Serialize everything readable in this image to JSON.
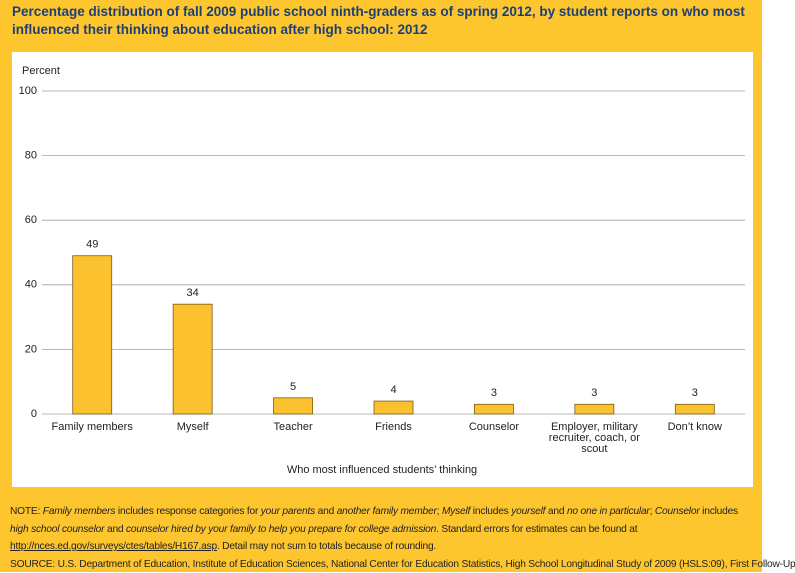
{
  "chart_data": {
    "type": "bar",
    "title": "Percentage distribution of fall 2009 public school ninth-graders as of spring 2012, by student reports on who most influenced their thinking about education after high school: 2012",
    "y_axis_label": "Percent",
    "x_axis_label": "Who most influenced students’ thinking",
    "categories": [
      "Family members",
      "Myself",
      "Teacher",
      "Friends",
      "Counselor",
      "Employer, military recruiter, coach, or scout",
      "Don’t know"
    ],
    "values": [
      49,
      34,
      5,
      4,
      3,
      3,
      3
    ],
    "color": "#fcc12f",
    "ylim": [
      0,
      100
    ],
    "yticks": [
      0,
      20,
      40,
      60,
      80,
      100
    ],
    "grid": true,
    "note": [
      {
        "text": "NOTE: ",
        "italic": false
      },
      {
        "text": "Family members",
        "italic": true
      },
      {
        "text": " includes response categories for ",
        "italic": false
      },
      {
        "text": "your parents",
        "italic": true
      },
      {
        "text": " and ",
        "italic": false
      },
      {
        "text": "another family member",
        "italic": true
      },
      {
        "text": "; ",
        "italic": false
      },
      {
        "text": "Myself",
        "italic": true
      },
      {
        "text": " includes ",
        "italic": false
      },
      {
        "text": "yourself",
        "italic": true
      },
      {
        "text": " and ",
        "italic": false
      },
      {
        "text": "no one in particular",
        "italic": true
      },
      {
        "text": "; ",
        "italic": false
      },
      {
        "text": "Counselor",
        "italic": true
      },
      {
        "text": " includes ",
        "italic": false
      },
      {
        "text": "high school counselor",
        "italic": true
      },
      {
        "text": " and ",
        "italic": false
      },
      {
        "text": "counselor hired by your family to help you prepare for college admission",
        "italic": true
      },
      {
        "text": ". Standard errors for estimates can be found at ",
        "italic": false
      },
      {
        "text": "http://nces.ed.gov/surveys/ctes/tables/H167.asp",
        "italic": false,
        "underline": true
      },
      {
        "text": ". Detail may not sum to totals because of rounding.",
        "italic": false
      }
    ],
    "source": "SOURCE: U.S. Department of Education, Institute of Education Sciences, National Center for Education Statistics, High School Longitudinal Study of 2009 (HSLS:09), First Follow-Up"
  }
}
